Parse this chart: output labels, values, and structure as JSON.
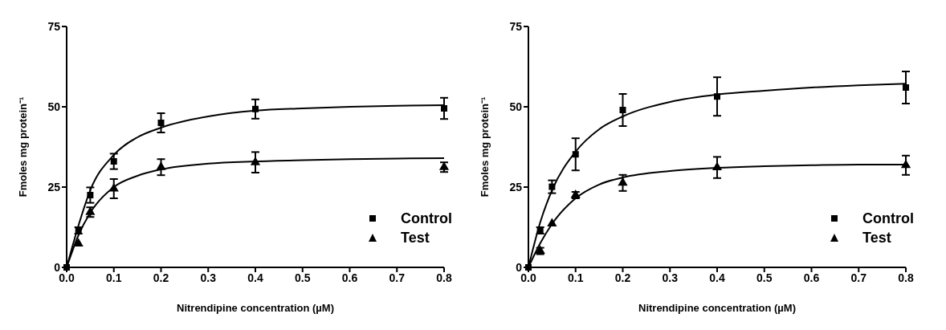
{
  "chart_data": [
    {
      "type": "scatter",
      "xlabel": "Nitrendipine concentration (µM)",
      "ylabel": "Fmoles mg protein⁻¹",
      "x": [
        0,
        0.025,
        0.05,
        0.1,
        0.2,
        0.4,
        0.8
      ],
      "xlim": [
        0,
        0.8
      ],
      "xticks": [
        {
          "value": 0,
          "label": "0.0"
        },
        0.1,
        0.2,
        0.3,
        0.4,
        0.5,
        0.6,
        0.7,
        0.8
      ],
      "ylim": [
        0,
        75
      ],
      "yticks": [
        0,
        25,
        50,
        75
      ],
      "legend": "bottom right",
      "series": [
        {
          "name": "Control",
          "color": "#000000",
          "marker": "square",
          "values": [
            0,
            11.5,
            22.5,
            33,
            45,
            49.3,
            49.5
          ],
          "errors": [
            null,
            1,
            2.4,
            2.4,
            3,
            3,
            3.3
          ]
        },
        {
          "name": "Test",
          "color": "#000000",
          "marker": "triangle",
          "values": [
            null,
            7.4,
            17.2,
            24.5,
            31.2,
            32.7,
            31.2
          ],
          "errors": [
            null,
            null,
            1.5,
            3,
            2.5,
            3.2,
            1.5
          ]
        },
        {
          "type": "line",
          "color": "#000000",
          "marker": "none",
          "line_style": "solid",
          "x": [
            0,
            0.025,
            0.05,
            0.1,
            0.15,
            0.2,
            0.3,
            0.4,
            0.5,
            0.6,
            0.7,
            0.8
          ],
          "values": [
            0,
            13,
            24,
            35,
            40.5,
            43.5,
            47,
            48.8,
            49.5,
            50,
            50.3,
            50.5
          ]
        },
        {
          "type": "line",
          "color": "#000000",
          "marker": "none",
          "line_style": "solid",
          "x": [
            0,
            0.025,
            0.05,
            0.1,
            0.15,
            0.2,
            0.3,
            0.4,
            0.5,
            0.6,
            0.7,
            0.8
          ],
          "values": [
            0,
            10,
            17,
            25,
            28.5,
            30.5,
            32.3,
            33,
            33.4,
            33.7,
            33.9,
            34
          ]
        }
      ]
    },
    {
      "type": "scatter",
      "xlabel": "Nitrendipine concentration (µM)",
      "ylabel": "Fmoles mg protein⁻¹",
      "x": [
        0,
        0.025,
        0.05,
        0.1,
        0.2,
        0.4,
        0.8
      ],
      "xlim": [
        0,
        0.8
      ],
      "xticks": [
        {
          "value": 0,
          "label": "0.0"
        },
        0.1,
        0.2,
        0.3,
        0.4,
        0.5,
        0.6,
        0.7,
        0.8
      ],
      "ylim": [
        0,
        75
      ],
      "yticks": [
        0,
        25,
        50,
        75
      ],
      "legend": "bottom right",
      "series": [
        {
          "name": "Control",
          "color": "#000000",
          "marker": "square",
          "values": [
            0,
            11.5,
            25.1,
            35.2,
            49,
            53.2,
            56
          ],
          "errors": [
            null,
            1,
            2,
            5,
            5,
            6,
            5
          ]
        },
        {
          "name": "Test",
          "color": "#000000",
          "marker": "triangle",
          "values": [
            null,
            5.1,
            13.6,
            22.5,
            26.3,
            31.1,
            31.8
          ],
          "errors": [
            null,
            1,
            null,
            1,
            2.5,
            3.3,
            3
          ]
        },
        {
          "type": "line",
          "color": "#000000",
          "marker": "none",
          "line_style": "solid",
          "x": [
            0,
            0.025,
            0.05,
            0.1,
            0.15,
            0.2,
            0.3,
            0.4,
            0.5,
            0.6,
            0.7,
            0.8
          ],
          "values": [
            0,
            14,
            24,
            36,
            43,
            47,
            51.5,
            53.8,
            55,
            56,
            56.7,
            57.2
          ]
        },
        {
          "type": "line",
          "color": "#000000",
          "marker": "none",
          "line_style": "solid",
          "x": [
            0,
            0.025,
            0.05,
            0.1,
            0.15,
            0.2,
            0.3,
            0.4,
            0.5,
            0.6,
            0.7,
            0.8
          ],
          "values": [
            0,
            7.5,
            13.5,
            21.5,
            25.8,
            28,
            30,
            31,
            31.5,
            31.8,
            32,
            32
          ]
        }
      ]
    }
  ]
}
